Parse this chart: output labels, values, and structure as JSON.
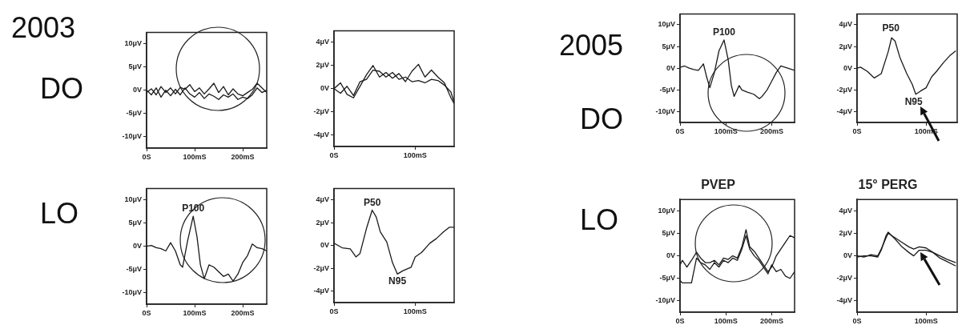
{
  "chart_data": [
    {
      "type": "line",
      "annotations": [
        "2003",
        "DO"
      ],
      "x": [
        0,
        10,
        20,
        30,
        40,
        50,
        60,
        70,
        80,
        90,
        100,
        110,
        120,
        130,
        140,
        150,
        160,
        170,
        180,
        190,
        200,
        210,
        220,
        230,
        240,
        250
      ],
      "series": [
        {
          "color": "#1a1a1a",
          "values": [
            -0.5,
            0.3,
            -1,
            0.8,
            -0.5,
            0.5,
            -0.8,
            0.6,
            0.2,
            1.2,
            -0.3,
            0.5,
            -0.8,
            0.3,
            1.5,
            -0.5,
            0.8,
            -1,
            0.3,
            -0.8,
            -1.2,
            -0.5,
            0.2,
            1.5,
            0.5,
            -0.5
          ]
        },
        {
          "color": "#1a1a1a",
          "values": [
            0,
            -1,
            0.5,
            -1.5,
            0,
            -1.2,
            0.2,
            -1,
            0.5,
            -0.8,
            -1.5,
            -0.5,
            -1.8,
            -0.8,
            -1.3,
            -2,
            -1,
            -1.5,
            -0.8,
            -2,
            -1.5,
            -1.8,
            -1,
            0.5,
            -0.5,
            0
          ]
        }
      ],
      "xlim": [
        0,
        250
      ],
      "xticks": [
        {
          "value": 0,
          "label": "0S"
        },
        {
          "value": 100,
          "label": "100mS"
        },
        {
          "value": 200,
          "label": "200mS"
        }
      ],
      "ylim": [
        -12.5,
        12.5
      ],
      "yticks": [
        {
          "value": 10,
          "label": "10μV"
        },
        {
          "value": 5,
          "label": "5μV"
        },
        {
          "value": 0,
          "label": "0V"
        },
        {
          "value": -5,
          "label": "-5μV"
        },
        {
          "value": -10,
          "label": "-10μV"
        }
      ]
    },
    {
      "type": "line",
      "x": [
        0,
        8,
        16,
        24,
        32,
        40,
        48,
        56,
        64,
        72,
        80,
        88,
        96,
        104,
        112,
        120,
        128,
        136,
        144,
        148
      ],
      "series": [
        {
          "color": "#1a1a1a",
          "values": [
            0,
            0.5,
            -0.5,
            -0.8,
            0.2,
            1.2,
            2.0,
            1.0,
            1.4,
            0.9,
            1.3,
            0.6,
            1.5,
            2.1,
            1.0,
            1.6,
            1.0,
            0.5,
            -0.8,
            -1.3
          ]
        },
        {
          "color": "#1a1a1a",
          "values": [
            0,
            -0.4,
            0.2,
            -0.6,
            0.6,
            0.8,
            1.6,
            1.5,
            1.0,
            1.4,
            0.8,
            1.0,
            0.6,
            0.7,
            0.5,
            0.8,
            0.7,
            0.3,
            -0.3,
            -1.2
          ]
        }
      ],
      "xlim": [
        0,
        148
      ],
      "xticks": [
        {
          "value": 0,
          "label": "0S"
        },
        {
          "value": 100,
          "label": "100mS"
        }
      ],
      "ylim": [
        -5,
        5
      ],
      "yticks": [
        {
          "value": 4,
          "label": "4μV"
        },
        {
          "value": 2,
          "label": "2μV"
        },
        {
          "value": 0,
          "label": "0V"
        },
        {
          "value": -2,
          "label": "-2μV"
        },
        {
          "value": -4,
          "label": "-4μV"
        }
      ]
    },
    {
      "type": "line",
      "annotations": [
        "LO",
        {
          "text": "P100",
          "x": 97,
          "y": 6.5
        }
      ],
      "x": [
        0,
        10,
        20,
        30,
        40,
        50,
        60,
        70,
        75,
        85,
        97,
        105,
        112,
        120,
        130,
        140,
        150,
        160,
        170,
        180,
        190,
        200,
        210,
        220,
        230,
        240,
        250
      ],
      "series": [
        {
          "color": "#1a1a1a",
          "values": [
            0,
            0.2,
            -0.3,
            -0.5,
            -1,
            0.8,
            -1,
            -4,
            -4.5,
            1,
            6.5,
            2,
            -4,
            -7,
            -4,
            -4.5,
            -5.5,
            -6.5,
            -6,
            -7.5,
            -6,
            -3.5,
            -2,
            0.5,
            -0.3,
            -0.5,
            -1
          ]
        }
      ],
      "xlim": [
        0,
        250
      ],
      "xticks": [
        {
          "value": 0,
          "label": "0S"
        },
        {
          "value": 100,
          "label": "100mS"
        },
        {
          "value": 200,
          "label": "200mS"
        }
      ],
      "ylim": [
        -12.5,
        12.5
      ],
      "yticks": [
        {
          "value": 10,
          "label": "10μV"
        },
        {
          "value": 5,
          "label": "5μV"
        },
        {
          "value": 0,
          "label": "0V"
        },
        {
          "value": -5,
          "label": "-5μV"
        },
        {
          "value": -10,
          "label": "-10μV"
        }
      ]
    },
    {
      "type": "line",
      "annotations": [
        {
          "text": "P50",
          "x": 47,
          "y": 3.1
        },
        {
          "text": "N95",
          "x": 78,
          "y": -2.5
        }
      ],
      "x": [
        0,
        10,
        20,
        27,
        32,
        40,
        47,
        52,
        57,
        65,
        72,
        78,
        85,
        95,
        100,
        108,
        118,
        126,
        135,
        142,
        148
      ],
      "series": [
        {
          "color": "#1a1a1a",
          "values": [
            0.2,
            -0.2,
            -0.3,
            -1,
            -0.7,
            1.5,
            3.1,
            2.5,
            1.2,
            0.3,
            -1.5,
            -2.5,
            -2.2,
            -1.9,
            -1,
            -0.6,
            0.2,
            0.6,
            1.2,
            1.6,
            1.6
          ]
        }
      ],
      "xlim": [
        0,
        148
      ],
      "xticks": [
        {
          "value": 0,
          "label": "0S"
        },
        {
          "value": 100,
          "label": "100mS"
        }
      ],
      "ylim": [
        -5,
        5
      ],
      "yticks": [
        {
          "value": 4,
          "label": "4μV"
        },
        {
          "value": 2,
          "label": "2μV"
        },
        {
          "value": 0,
          "label": "0V"
        },
        {
          "value": -2,
          "label": "-2μV"
        },
        {
          "value": -4,
          "label": "-4μV"
        }
      ]
    },
    {
      "type": "line",
      "annotations": [
        "2005",
        "DO",
        {
          "text": "P100",
          "x": 96,
          "y": 6.5
        }
      ],
      "x": [
        0,
        10,
        20,
        30,
        40,
        51,
        58,
        65,
        75,
        85,
        96,
        105,
        112,
        118,
        129,
        135,
        147,
        161,
        173,
        179,
        190,
        200,
        210,
        220,
        235,
        250
      ],
      "series": [
        {
          "color": "#1a1a1a",
          "values": [
            0.2,
            0.5,
            0,
            -0.3,
            -0.5,
            1,
            -2,
            -4.5,
            -1,
            4,
            6.5,
            2,
            -4,
            -6.5,
            -4,
            -5,
            -5.5,
            -6,
            -7,
            -6.5,
            -5,
            -3,
            -1,
            0.5,
            0,
            -0.5
          ]
        }
      ],
      "xlim": [
        0,
        250
      ],
      "xticks": [
        {
          "value": 0,
          "label": "0S"
        },
        {
          "value": 100,
          "label": "100mS"
        },
        {
          "value": 200,
          "label": "200mS"
        }
      ],
      "ylim": [
        -12.5,
        12.5
      ],
      "yticks": [
        {
          "value": 10,
          "label": "10μV"
        },
        {
          "value": 5,
          "label": "5μV"
        },
        {
          "value": 0,
          "label": "0V"
        },
        {
          "value": -5,
          "label": "-5μV"
        },
        {
          "value": -10,
          "label": "-10μV"
        }
      ]
    },
    {
      "type": "line",
      "annotations": [
        {
          "text": "P50",
          "x": 49,
          "y": 3.0
        },
        {
          "text": "N95",
          "x": 82,
          "y": -2.5
        }
      ],
      "x": [
        0,
        5,
        15,
        25,
        35,
        45,
        50,
        55,
        62,
        72,
        80,
        85,
        92,
        100,
        108,
        115,
        125,
        135,
        143
      ],
      "series": [
        {
          "color": "#1a1a1a",
          "values": [
            0,
            0.1,
            -0.3,
            -0.9,
            -0.5,
            1.5,
            2.8,
            2.5,
            1.0,
            -0.5,
            -1.5,
            -2.4,
            -2.1,
            -1.8,
            -0.8,
            -0.3,
            0.5,
            1.2,
            1.6
          ]
        }
      ],
      "xlim": [
        0,
        145
      ],
      "xticks": [
        {
          "value": 0,
          "label": "0S"
        },
        {
          "value": 100,
          "label": "100mS"
        }
      ],
      "ylim": [
        -5,
        5
      ],
      "yticks": [
        {
          "value": 4,
          "label": "4μV"
        },
        {
          "value": 2,
          "label": "2μV"
        },
        {
          "value": 0,
          "label": "0V"
        },
        {
          "value": -2,
          "label": "-2μV"
        },
        {
          "value": -4,
          "label": "-4μV"
        }
      ]
    },
    {
      "type": "line",
      "title": "PVEP",
      "annotations": [
        "LO"
      ],
      "x": [
        0,
        5,
        15,
        25,
        36,
        45,
        55,
        65,
        75,
        85,
        95,
        105,
        115,
        125,
        135,
        144,
        152,
        162,
        172,
        182,
        192,
        200,
        210,
        220,
        230,
        240,
        250
      ],
      "series": [
        {
          "color": "#1a1a1a",
          "values": [
            -2,
            -1,
            -2.5,
            -1,
            0.8,
            -0.5,
            -1.5,
            -1.5,
            -1,
            -2,
            -0.5,
            -0.8,
            0,
            -0.5,
            2,
            5.8,
            2,
            1,
            -0.5,
            -2,
            -3.5,
            -2.5,
            0,
            1.5,
            3,
            4.5,
            4
          ]
        },
        {
          "color": "#1a1a1a",
          "values": [
            -5.5,
            -6,
            -6,
            -6,
            -0.5,
            -1.5,
            -2,
            -3,
            -1.5,
            -2.5,
            -1,
            -1.5,
            -0.5,
            -1,
            1.5,
            4.5,
            1.5,
            0,
            -1,
            -2.5,
            -4,
            -2,
            -3.5,
            -3,
            -4.5,
            -5,
            -3.5
          ]
        }
      ],
      "xlim": [
        0,
        250
      ],
      "xticks": [
        {
          "value": 0,
          "label": "0S"
        },
        {
          "value": 100,
          "label": "100mS"
        },
        {
          "value": 200,
          "label": "200mS"
        }
      ],
      "ylim": [
        -12.5,
        12.5
      ],
      "yticks": [
        {
          "value": 10,
          "label": "10μV"
        },
        {
          "value": 5,
          "label": "5μV"
        },
        {
          "value": 0,
          "label": "0V"
        },
        {
          "value": -5,
          "label": "-5μV"
        },
        {
          "value": -10,
          "label": "-10μV"
        }
      ]
    },
    {
      "type": "line",
      "title": "15° PERG",
      "x": [
        0,
        10,
        20,
        30,
        35,
        42,
        45,
        55,
        65,
        75,
        82,
        90,
        100,
        110,
        120,
        130,
        143
      ],
      "series": [
        {
          "color": "#1a1a1a",
          "values": [
            -0.1,
            0,
            0,
            -0.1,
            0.5,
            1.8,
            2.1,
            1.5,
            0.8,
            0.3,
            0,
            0.5,
            0.5,
            0.3,
            -0.2,
            -0.5,
            -0.9
          ]
        },
        {
          "color": "#1a1a1a",
          "values": [
            0,
            -0.1,
            0.1,
            0,
            0.6,
            1.6,
            2,
            1.6,
            1.2,
            0.8,
            0.6,
            0.8,
            0.7,
            0.3,
            0,
            -0.3,
            -0.6
          ]
        }
      ],
      "xlim": [
        0,
        145
      ],
      "xticks": [
        {
          "value": 0,
          "label": "0S"
        },
        {
          "value": 100,
          "label": "100mS"
        }
      ],
      "ylim": [
        -5,
        5
      ],
      "yticks": [
        {
          "value": 4,
          "label": "4μV"
        },
        {
          "value": 2,
          "label": "2μV"
        },
        {
          "value": 0,
          "label": "0V"
        },
        {
          "value": -2,
          "label": "-2μV"
        },
        {
          "value": -4,
          "label": "-4μV"
        }
      ]
    }
  ]
}
